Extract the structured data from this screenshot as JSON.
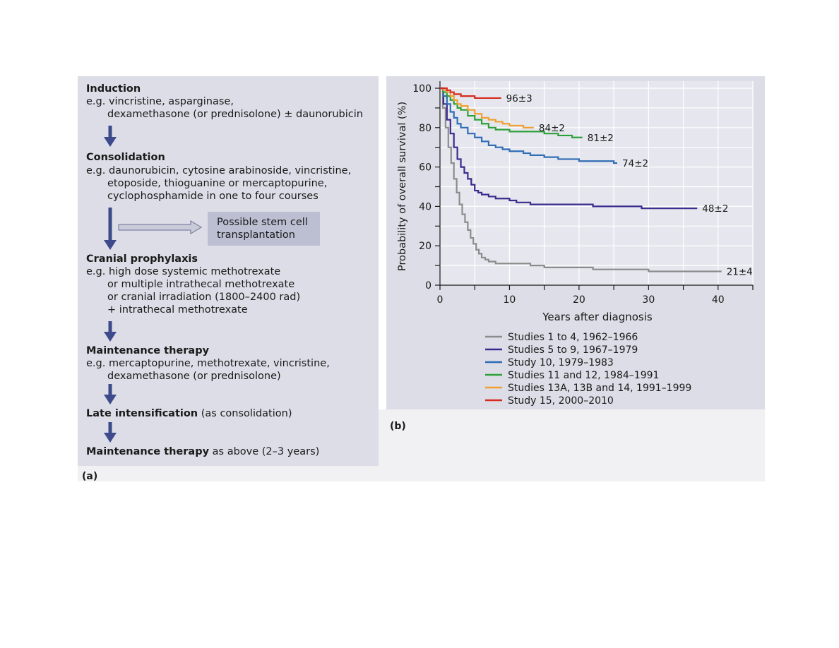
{
  "flow": {
    "induction": {
      "title": "Induction",
      "line1": "e.g. vincristine, asparginase,",
      "line2": "dexamethasone (or prednisolone)  ± daunorubicin"
    },
    "consolidation": {
      "title": "Consolidation",
      "line1": "e.g. daunorubicin, cytosine arabinoside, vincristine,",
      "line2": "etoposide, thioguanine or mercaptopurine,",
      "line3": "cyclophosphamide in one to four courses"
    },
    "stem_cell": {
      "line1": "Possible stem cell",
      "line2": "transplantation"
    },
    "cranial": {
      "title": "Cranial prophylaxis",
      "line1": "e.g.  high dose systemic methotrexate",
      "line2": "or multiple intrathecal methotrexate",
      "line3": "or cranial irradiation (1800–2400 rad)",
      "line4": "+ intrathecal methotrexate"
    },
    "maintenance": {
      "title": "Maintenance therapy",
      "line1": "e.g. mercaptopurine, methotrexate, vincristine,",
      "line2": "dexamethasone (or prednisolone)"
    },
    "late": {
      "title": "Late intensification",
      "rest": " (as consolidation)"
    },
    "maintenance2": {
      "title": "Maintenance therapy",
      "rest": " as above (2–3 years)"
    },
    "panel_label": "(a)"
  },
  "panel_b_label": "(b)",
  "colors": {
    "arrow": "#3d4a8c",
    "panel": "#dcdde6",
    "grid": "#ffffff"
  },
  "chart_data": {
    "type": "line",
    "step": true,
    "xlabel": "Years after diagnosis",
    "ylabel": "Probability of overall survival (%)",
    "xlim": [
      0,
      45
    ],
    "ylim": [
      0,
      100
    ],
    "xticks": [
      0,
      10,
      20,
      30,
      40
    ],
    "yticks": [
      0,
      20,
      40,
      60,
      80,
      100
    ],
    "grid": true,
    "legend_position": "bottom",
    "series": [
      {
        "name": "Studies 1 to 4, 1962–1966",
        "color": "#8c8c8c",
        "end_label": "21±4",
        "x": [
          0,
          0.4,
          0.8,
          1.2,
          1.6,
          2.0,
          2.4,
          2.8,
          3.2,
          3.6,
          4.0,
          4.4,
          4.8,
          5.2,
          5.6,
          6.0,
          6.5,
          7.0,
          8.0,
          10,
          13,
          15,
          22,
          30,
          40.5
        ],
        "y": [
          100,
          90,
          80,
          70,
          62,
          54,
          47,
          41,
          36,
          32,
          28,
          24,
          21,
          18,
          16,
          14,
          13,
          12,
          11,
          11,
          10,
          9,
          8,
          7,
          7
        ]
      },
      {
        "name": "Studies 5 to 9, 1967–1979",
        "color": "#3b2a8e",
        "end_label": "48±2",
        "x": [
          0,
          0.5,
          1,
          1.5,
          2,
          2.5,
          3,
          3.5,
          4,
          4.5,
          5,
          5.5,
          6,
          7,
          8,
          9,
          10,
          11,
          12,
          13,
          15,
          18,
          22,
          26,
          29,
          33,
          37
        ],
        "y": [
          100,
          92,
          84,
          77,
          70,
          64,
          60,
          57,
          54,
          51,
          48,
          47,
          46,
          45,
          44,
          44,
          43,
          42,
          42,
          41,
          41,
          41,
          40,
          40,
          39,
          39,
          39
        ]
      },
      {
        "name": "Study 10, 1979–1983",
        "color": "#2f6db5",
        "end_label": "74±2",
        "x": [
          0,
          0.5,
          1,
          1.5,
          2,
          2.5,
          3,
          4,
          5,
          6,
          7,
          8,
          9,
          10,
          11,
          12,
          13,
          14,
          15,
          16,
          17,
          18,
          19,
          20,
          22,
          25,
          25.5
        ],
        "y": [
          100,
          96,
          92,
          88,
          85,
          82,
          80,
          77,
          75,
          73,
          71,
          70,
          69,
          68,
          68,
          67,
          66,
          66,
          65,
          65,
          64,
          64,
          64,
          63,
          63,
          62,
          62
        ]
      },
      {
        "name": "Studies 11 and 12, 1984–1991",
        "color": "#2ea03a",
        "end_label": "81±2",
        "x": [
          0,
          0.5,
          1,
          1.5,
          2,
          2.5,
          3,
          4,
          5,
          6,
          7,
          8,
          10,
          12,
          14,
          15,
          16,
          17,
          18,
          19,
          20,
          20.5
        ],
        "y": [
          100,
          98,
          96,
          94,
          92,
          90,
          89,
          86,
          84,
          82,
          80,
          79,
          78,
          78,
          78,
          77,
          77,
          76,
          76,
          75,
          75,
          75
        ]
      },
      {
        "name": "Studies 13A, 13B and 14, 1991–1999",
        "color": "#f0a030",
        "end_label": "84±2",
        "x": [
          0,
          0.5,
          1,
          1.5,
          2,
          2.5,
          3,
          4,
          5,
          6,
          7,
          8,
          9,
          10,
          11,
          12,
          13,
          13.5
        ],
        "y": [
          100,
          99,
          98,
          96,
          94,
          92,
          91,
          89,
          87,
          85,
          84,
          83,
          82,
          81,
          81,
          80,
          80,
          80
        ]
      },
      {
        "name": "Study 15, 2000–2010",
        "color": "#d62a1e",
        "end_label": "96±3",
        "x": [
          0,
          0.5,
          1,
          1.5,
          2,
          2.5,
          3,
          4,
          5,
          6,
          7,
          8,
          8.8
        ],
        "y": [
          100,
          100,
          99,
          98,
          97,
          97,
          96,
          96,
          95,
          95,
          95,
          95,
          95
        ]
      }
    ]
  }
}
